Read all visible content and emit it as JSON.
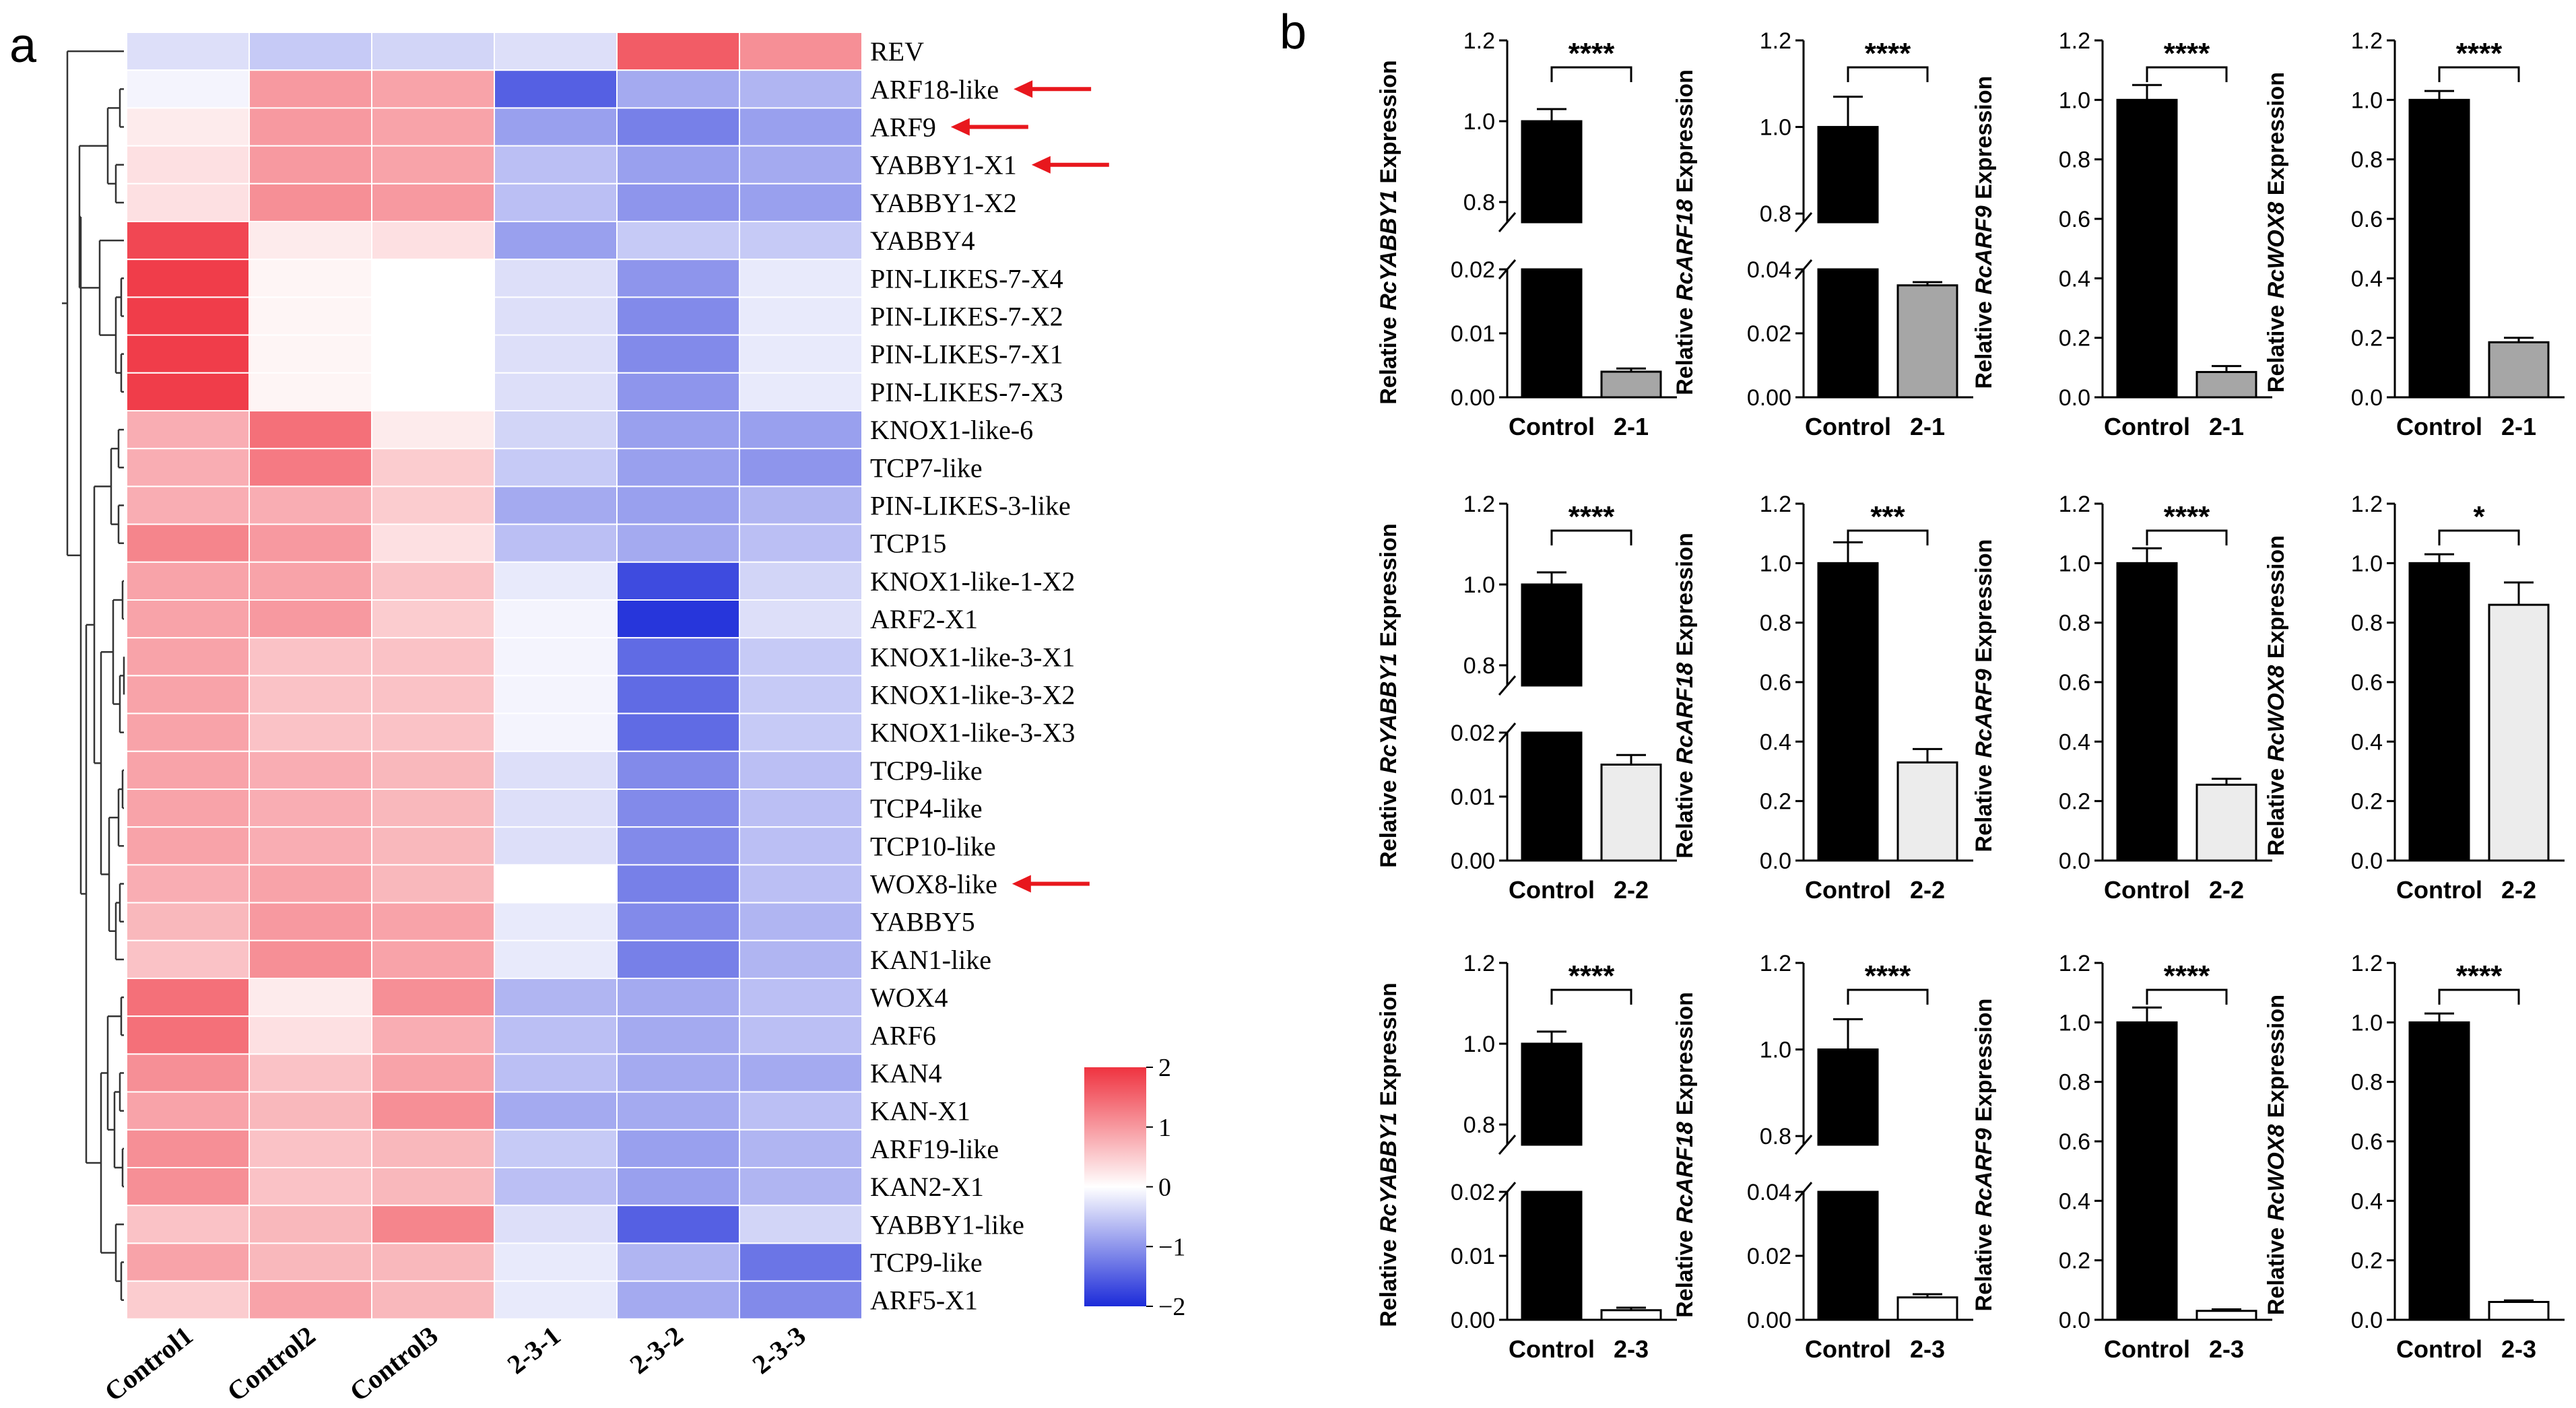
{
  "panel_labels": {
    "a": "a",
    "b": "b"
  },
  "colors": {
    "high": "#ef3340",
    "mid": "#ffffff",
    "low": "#1c2bd9",
    "bar_black": "#000000",
    "bar_grey": "#a6a6a6",
    "bar_light": "#ececec",
    "arrow": "#e8171d"
  },
  "chart_data": [
    {
      "type": "heatmap",
      "title": "",
      "columns": [
        "Control1",
        "Control2",
        "Control3",
        "2-3-1",
        "2-3-2",
        "2-3-3"
      ],
      "rows": [
        "REV",
        "ARF18-like",
        "ARF9",
        "YABBY1-X1",
        "YABBY1-X2",
        "YABBY4",
        "PIN-LIKES-7-X4",
        "PIN-LIKES-7-X2",
        "PIN-LIKES-7-X1",
        "PIN-LIKES-7-X3",
        "KNOX1-like-6",
        "TCP7-like",
        "PIN-LIKES-3-like",
        "TCP15",
        "KNOX1-like-1-X2",
        "ARF2-X1",
        "KNOX1-like-3-X1",
        "KNOX1-like-3-X2",
        "KNOX1-like-3-X3",
        "TCP9-like",
        "TCP4-like",
        "TCP10-like",
        "WOX8-like",
        "YABBY5",
        "KAN1-like",
        "WOX4",
        "ARF6",
        "KAN4",
        "KAN-X1",
        "ARF19-like",
        "KAN2-X1",
        "YABBY1-like",
        "TCP9-like",
        "ARF5-X1"
      ],
      "values": [
        [
          -0.3,
          -0.5,
          -0.4,
          -0.3,
          1.6,
          1.1
        ],
        [
          -0.1,
          1.0,
          0.9,
          -1.5,
          -0.8,
          -0.7
        ],
        [
          0.2,
          1.0,
          0.9,
          -0.9,
          -1.2,
          -0.9
        ],
        [
          0.3,
          1.0,
          0.9,
          -0.6,
          -0.9,
          -0.8
        ],
        [
          0.3,
          1.1,
          1.0,
          -0.6,
          -1.0,
          -0.9
        ],
        [
          1.8,
          0.2,
          0.3,
          -0.9,
          -0.5,
          -0.5
        ],
        [
          1.9,
          0.1,
          0.0,
          -0.3,
          -1.0,
          -0.2
        ],
        [
          1.9,
          0.1,
          0.0,
          -0.3,
          -1.1,
          -0.2
        ],
        [
          1.9,
          0.1,
          0.0,
          -0.3,
          -1.1,
          -0.2
        ],
        [
          1.9,
          0.1,
          0.0,
          -0.3,
          -1.0,
          -0.2
        ],
        [
          0.8,
          1.4,
          0.2,
          -0.4,
          -0.9,
          -0.9
        ],
        [
          0.8,
          1.3,
          0.5,
          -0.5,
          -0.9,
          -1.0
        ],
        [
          0.8,
          0.8,
          0.5,
          -0.8,
          -0.9,
          -0.7
        ],
        [
          1.2,
          1.0,
          0.3,
          -0.6,
          -0.8,
          -0.6
        ],
        [
          0.9,
          0.9,
          0.6,
          -0.2,
          -1.7,
          -0.4
        ],
        [
          0.9,
          1.0,
          0.5,
          -0.1,
          -1.9,
          -0.3
        ],
        [
          0.9,
          0.6,
          0.6,
          -0.1,
          -1.4,
          -0.5
        ],
        [
          0.9,
          0.6,
          0.6,
          -0.1,
          -1.4,
          -0.5
        ],
        [
          0.9,
          0.6,
          0.6,
          -0.1,
          -1.4,
          -0.5
        ],
        [
          0.9,
          0.8,
          0.7,
          -0.3,
          -1.1,
          -0.6
        ],
        [
          0.9,
          0.8,
          0.7,
          -0.3,
          -1.1,
          -0.6
        ],
        [
          0.9,
          0.8,
          0.7,
          -0.3,
          -1.1,
          -0.6
        ],
        [
          0.8,
          0.9,
          0.7,
          0.0,
          -1.2,
          -0.6
        ],
        [
          0.7,
          1.0,
          0.9,
          -0.2,
          -1.1,
          -0.7
        ],
        [
          0.6,
          1.1,
          0.9,
          -0.2,
          -1.2,
          -0.7
        ],
        [
          1.4,
          0.2,
          1.1,
          -0.7,
          -0.8,
          -0.6
        ],
        [
          1.4,
          0.3,
          0.8,
          -0.6,
          -0.8,
          -0.6
        ],
        [
          1.1,
          0.6,
          0.9,
          -0.6,
          -0.8,
          -0.8
        ],
        [
          0.9,
          0.7,
          1.1,
          -0.8,
          -0.8,
          -0.6
        ],
        [
          1.1,
          0.6,
          0.7,
          -0.5,
          -0.9,
          -0.7
        ],
        [
          1.1,
          0.6,
          0.7,
          -0.6,
          -0.9,
          -0.7
        ],
        [
          0.6,
          0.7,
          1.2,
          -0.3,
          -1.5,
          -0.4
        ],
        [
          0.9,
          0.7,
          0.7,
          -0.2,
          -0.7,
          -1.3
        ],
        [
          0.5,
          0.9,
          0.7,
          -0.2,
          -0.8,
          -1.1
        ]
      ],
      "highlighted_rows": [
        "ARF18-like",
        "ARF9",
        "YABBY1-X1",
        "WOX8-like"
      ],
      "colorbar": {
        "min": -2,
        "max": 2,
        "ticks": [
          "2",
          "1",
          "0",
          "−1",
          "−2"
        ]
      },
      "dendrogram": "rows",
      "legend": "bottom-right"
    },
    {
      "type": "bar",
      "categories": [
        "Control",
        "2-1"
      ],
      "values": [
        1.0,
        0.004
      ],
      "errors": [
        0.03,
        0.0005
      ],
      "ylabel_prefix": "Relative ",
      "ylabel_gene": "RcYABBY1",
      "ylabel_suffix": " Expression",
      "significance": "****",
      "broken_axis": {
        "lower": [
          0,
          0.02
        ],
        "upper": [
          0.75,
          1.2
        ]
      },
      "ticks_lower": [
        "0.00",
        "0.01",
        "0.02"
      ],
      "ticks_upper": [
        "0.8",
        "1.0",
        "1.2"
      ],
      "bar_colors": [
        "#000000",
        "#a6a6a6"
      ]
    },
    {
      "type": "bar",
      "categories": [
        "Control",
        "2-1"
      ],
      "values": [
        1.0,
        0.035
      ],
      "errors": [
        0.07,
        0.001
      ],
      "ylabel_prefix": "Relative ",
      "ylabel_gene": "RcARF18",
      "ylabel_suffix": " Expression",
      "significance": "****",
      "broken_axis": {
        "lower": [
          0,
          0.04
        ],
        "upper": [
          0.78,
          1.2
        ]
      },
      "ticks_lower": [
        "0.00",
        "0.02",
        "0.04"
      ],
      "ticks_upper": [
        "0.8",
        "1.0",
        "1.2"
      ],
      "bar_colors": [
        "#000000",
        "#a6a6a6"
      ]
    },
    {
      "type": "bar",
      "categories": [
        "Control",
        "2-1"
      ],
      "values": [
        1.0,
        0.085
      ],
      "errors": [
        0.05,
        0.02
      ],
      "ylabel_prefix": "Relative ",
      "ylabel_gene": "RcARF9",
      "ylabel_suffix": " Expression",
      "significance": "****",
      "ylim": [
        0,
        1.2
      ],
      "ticks": [
        "0.0",
        "0.2",
        "0.4",
        "0.6",
        "0.8",
        "1.0",
        "1.2"
      ],
      "bar_colors": [
        "#000000",
        "#a6a6a6"
      ]
    },
    {
      "type": "bar",
      "categories": [
        "Control",
        "2-1"
      ],
      "values": [
        1.0,
        0.185
      ],
      "errors": [
        0.03,
        0.015
      ],
      "ylabel_prefix": "Relative ",
      "ylabel_gene": "RcWOX8",
      "ylabel_suffix": " Expression",
      "significance": "****",
      "ylim": [
        0,
        1.2
      ],
      "ticks": [
        "0.0",
        "0.2",
        "0.4",
        "0.6",
        "0.8",
        "1.0",
        "1.2"
      ],
      "bar_colors": [
        "#000000",
        "#a6a6a6"
      ]
    },
    {
      "type": "bar",
      "categories": [
        "Control",
        "2-2"
      ],
      "values": [
        1.0,
        0.015
      ],
      "errors": [
        0.03,
        0.0015
      ],
      "ylabel_prefix": "Relative ",
      "ylabel_gene": "RcYABBY1",
      "ylabel_suffix": " Expression",
      "significance": "****",
      "broken_axis": {
        "lower": [
          0,
          0.02
        ],
        "upper": [
          0.75,
          1.2
        ]
      },
      "ticks_lower": [
        "0.00",
        "0.01",
        "0.02"
      ],
      "ticks_upper": [
        "0.8",
        "1.0",
        "1.2"
      ],
      "bar_colors": [
        "#000000",
        "#ececec"
      ]
    },
    {
      "type": "bar",
      "categories": [
        "Control",
        "2-2"
      ],
      "values": [
        1.0,
        0.33
      ],
      "errors": [
        0.07,
        0.045
      ],
      "ylabel_prefix": "Relative ",
      "ylabel_gene": "RcARF18",
      "ylabel_suffix": " Expression",
      "significance": "***",
      "ylim": [
        0,
        1.2
      ],
      "ticks": [
        "0.0",
        "0.2",
        "0.4",
        "0.6",
        "0.8",
        "1.0",
        "1.2"
      ],
      "bar_colors": [
        "#000000",
        "#ececec"
      ]
    },
    {
      "type": "bar",
      "categories": [
        "Control",
        "2-2"
      ],
      "values": [
        1.0,
        0.255
      ],
      "errors": [
        0.05,
        0.02
      ],
      "ylabel_prefix": "Relative ",
      "ylabel_gene": "RcARF9",
      "ylabel_suffix": " Expression",
      "significance": "****",
      "ylim": [
        0,
        1.2
      ],
      "ticks": [
        "0.0",
        "0.2",
        "0.4",
        "0.6",
        "0.8",
        "1.0",
        "1.2"
      ],
      "bar_colors": [
        "#000000",
        "#ececec"
      ]
    },
    {
      "type": "bar",
      "categories": [
        "Control",
        "2-2"
      ],
      "values": [
        1.0,
        0.86
      ],
      "errors": [
        0.03,
        0.075
      ],
      "ylabel_prefix": "Relative ",
      "ylabel_gene": "RcWOX8",
      "ylabel_suffix": " Expression",
      "significance": "*",
      "ylim": [
        0,
        1.2
      ],
      "ticks": [
        "0.0",
        "0.2",
        "0.4",
        "0.6",
        "0.8",
        "1.0",
        "1.2"
      ],
      "bar_colors": [
        "#000000",
        "#ececec"
      ]
    },
    {
      "type": "bar",
      "categories": [
        "Control",
        "2-3"
      ],
      "values": [
        1.0,
        0.0015
      ],
      "errors": [
        0.03,
        0.0004
      ],
      "ylabel_prefix": "Relative ",
      "ylabel_gene": "RcYABBY1",
      "ylabel_suffix": " Expression",
      "significance": "****",
      "broken_axis": {
        "lower": [
          0,
          0.02
        ],
        "upper": [
          0.75,
          1.2
        ]
      },
      "ticks_lower": [
        "0.00",
        "0.01",
        "0.02"
      ],
      "ticks_upper": [
        "0.8",
        "1.0",
        "1.2"
      ],
      "bar_colors": [
        "#000000",
        "#ffffff"
      ]
    },
    {
      "type": "bar",
      "categories": [
        "Control",
        "2-3"
      ],
      "values": [
        1.0,
        0.007
      ],
      "errors": [
        0.07,
        0.001
      ],
      "ylabel_prefix": "Relative ",
      "ylabel_gene": "RcARF18",
      "ylabel_suffix": " Expression",
      "significance": "****",
      "broken_axis": {
        "lower": [
          0,
          0.04
        ],
        "upper": [
          0.78,
          1.2
        ]
      },
      "ticks_lower": [
        "0.00",
        "0.02",
        "0.04"
      ],
      "ticks_upper": [
        "0.8",
        "1.0",
        "1.2"
      ],
      "bar_colors": [
        "#000000",
        "#ffffff"
      ]
    },
    {
      "type": "bar",
      "categories": [
        "Control",
        "2-3"
      ],
      "values": [
        1.0,
        0.03
      ],
      "errors": [
        0.05,
        0.005
      ],
      "ylabel_prefix": "Relative ",
      "ylabel_gene": "RcARF9",
      "ylabel_suffix": " Expression",
      "significance": "****",
      "ylim": [
        0,
        1.2
      ],
      "ticks": [
        "0.0",
        "0.2",
        "0.4",
        "0.6",
        "0.8",
        "1.0",
        "1.2"
      ],
      "bar_colors": [
        "#000000",
        "#ffffff"
      ]
    },
    {
      "type": "bar",
      "categories": [
        "Control",
        "2-3"
      ],
      "values": [
        1.0,
        0.06
      ],
      "errors": [
        0.03,
        0.005
      ],
      "ylabel_prefix": "Relative ",
      "ylabel_gene": "RcWOX8",
      "ylabel_suffix": " Expression",
      "significance": "****",
      "ylim": [
        0,
        1.2
      ],
      "ticks": [
        "0.0",
        "0.2",
        "0.4",
        "0.6",
        "0.8",
        "1.0",
        "1.2"
      ],
      "bar_colors": [
        "#000000",
        "#ffffff"
      ]
    }
  ]
}
